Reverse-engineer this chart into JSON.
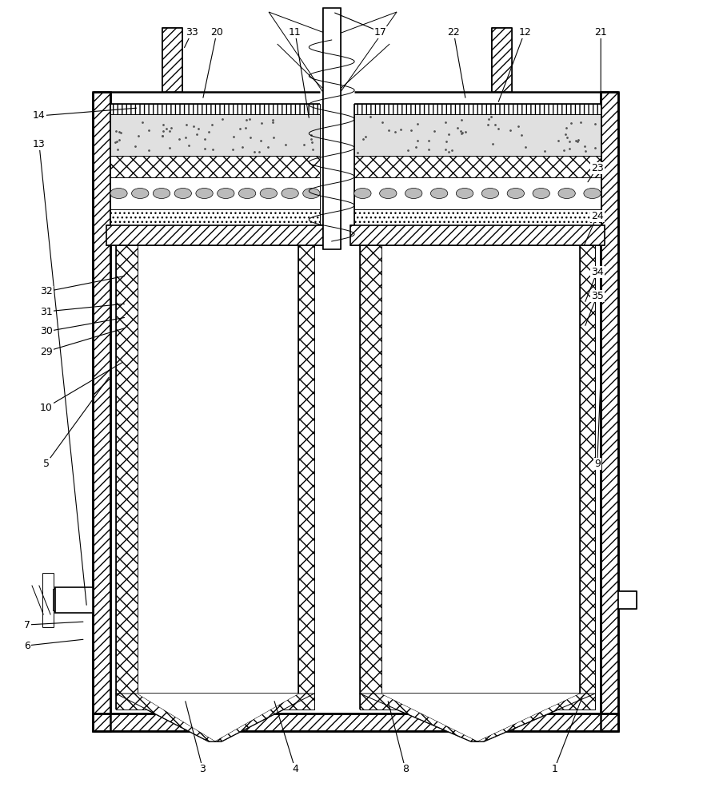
{
  "bg": "#ffffff",
  "fig_w": 8.89,
  "fig_h": 10.0,
  "dpi": 100,
  "labels": {
    "1": [
      0.78,
      0.038,
      0.82,
      0.13
    ],
    "3": [
      0.285,
      0.038,
      0.26,
      0.125
    ],
    "4": [
      0.415,
      0.038,
      0.385,
      0.125
    ],
    "5": [
      0.065,
      0.42,
      0.155,
      0.53
    ],
    "6": [
      0.038,
      0.192,
      0.12,
      0.2
    ],
    "7": [
      0.038,
      0.218,
      0.12,
      0.222
    ],
    "8": [
      0.57,
      0.038,
      0.545,
      0.125
    ],
    "9": [
      0.84,
      0.42,
      0.845,
      0.53
    ],
    "10": [
      0.065,
      0.49,
      0.175,
      0.548
    ],
    "11": [
      0.415,
      0.96,
      0.435,
      0.85
    ],
    "12": [
      0.738,
      0.96,
      0.7,
      0.87
    ],
    "13": [
      0.055,
      0.82,
      0.122,
      0.24
    ],
    "14": [
      0.055,
      0.855,
      0.195,
      0.865
    ],
    "17": [
      0.535,
      0.96,
      0.468,
      0.985
    ],
    "20": [
      0.305,
      0.96,
      0.285,
      0.875
    ],
    "21": [
      0.845,
      0.96,
      0.845,
      0.865
    ],
    "22": [
      0.638,
      0.96,
      0.655,
      0.875
    ],
    "23": [
      0.84,
      0.79,
      0.825,
      0.77
    ],
    "24": [
      0.84,
      0.73,
      0.82,
      0.69
    ],
    "29": [
      0.065,
      0.56,
      0.178,
      0.59
    ],
    "30": [
      0.065,
      0.585,
      0.178,
      0.603
    ],
    "31": [
      0.065,
      0.61,
      0.178,
      0.62
    ],
    "32": [
      0.065,
      0.635,
      0.178,
      0.655
    ],
    "33": [
      0.27,
      0.96,
      0.258,
      0.938
    ],
    "34": [
      0.84,
      0.66,
      0.822,
      0.62
    ],
    "35": [
      0.84,
      0.63,
      0.822,
      0.59
    ]
  }
}
